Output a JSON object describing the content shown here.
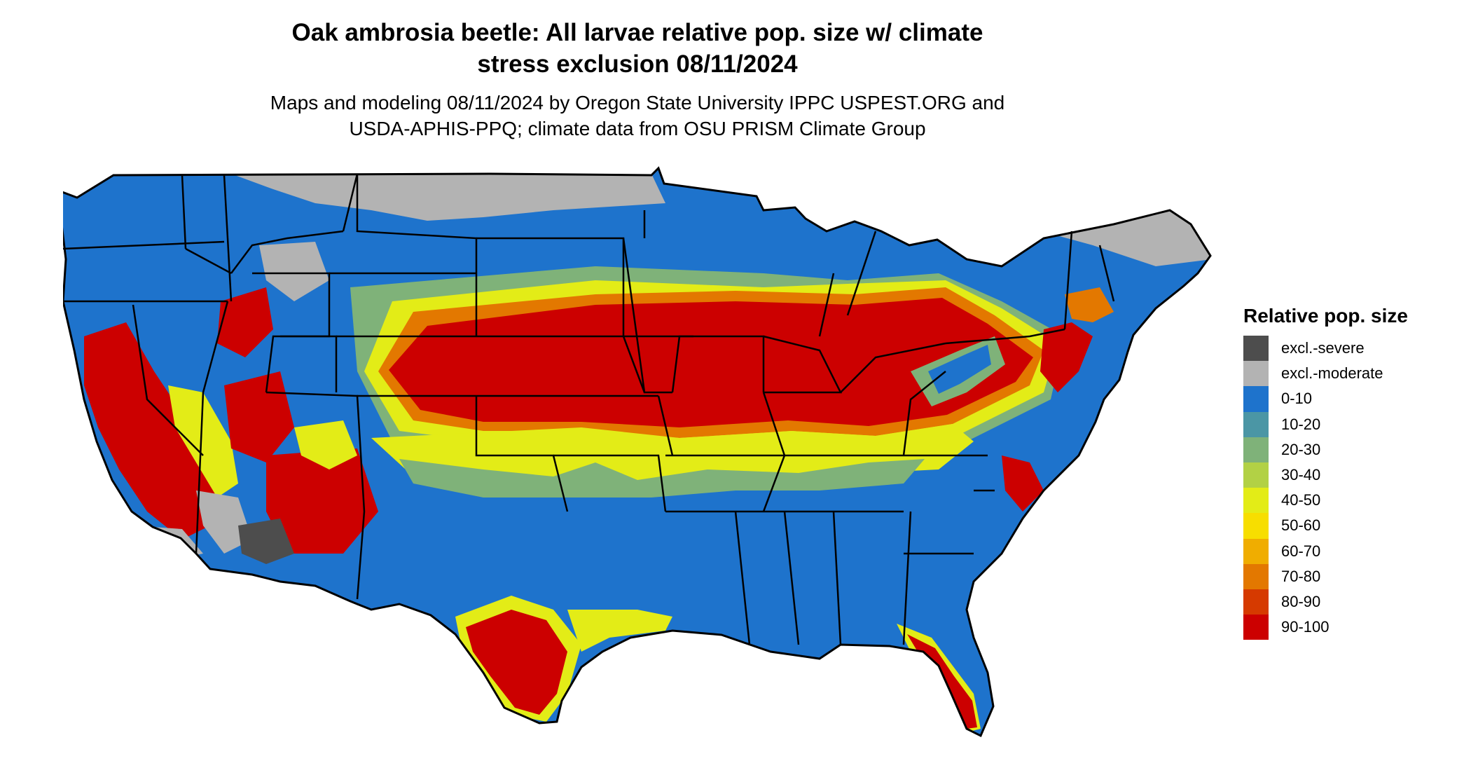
{
  "header": {
    "title_line1": "Oak ambrosia beetle: All larvae relative pop. size w/ climate",
    "title_line2": "stress exclusion 08/11/2024",
    "subtitle_line1": "Maps and modeling 08/11/2024 by Oregon State University IPPC USPEST.ORG and",
    "subtitle_line2": "USDA-APHIS-PPQ; climate data from OSU PRISM Climate Group"
  },
  "legend": {
    "title": "Relative pop. size",
    "items": [
      {
        "label": "excl.-severe",
        "color": "#4d4d4d"
      },
      {
        "label": "excl.-moderate",
        "color": "#b3b3b3"
      },
      {
        "label": "0-10",
        "color": "#1e73cc"
      },
      {
        "label": "10-20",
        "color": "#4b96a5"
      },
      {
        "label": "20-30",
        "color": "#7fb279"
      },
      {
        "label": "30-40",
        "color": "#b2d145"
      },
      {
        "label": "40-50",
        "color": "#e3ec17"
      },
      {
        "label": "50-60",
        "color": "#f7de00"
      },
      {
        "label": "60-70",
        "color": "#f0ad00"
      },
      {
        "label": "70-80",
        "color": "#e37800"
      },
      {
        "label": "80-90",
        "color": "#d63a00"
      },
      {
        "label": "90-100",
        "color": "#cc0000"
      }
    ]
  },
  "map": {
    "icons": [
      "us-state-boundaries-map"
    ]
  }
}
